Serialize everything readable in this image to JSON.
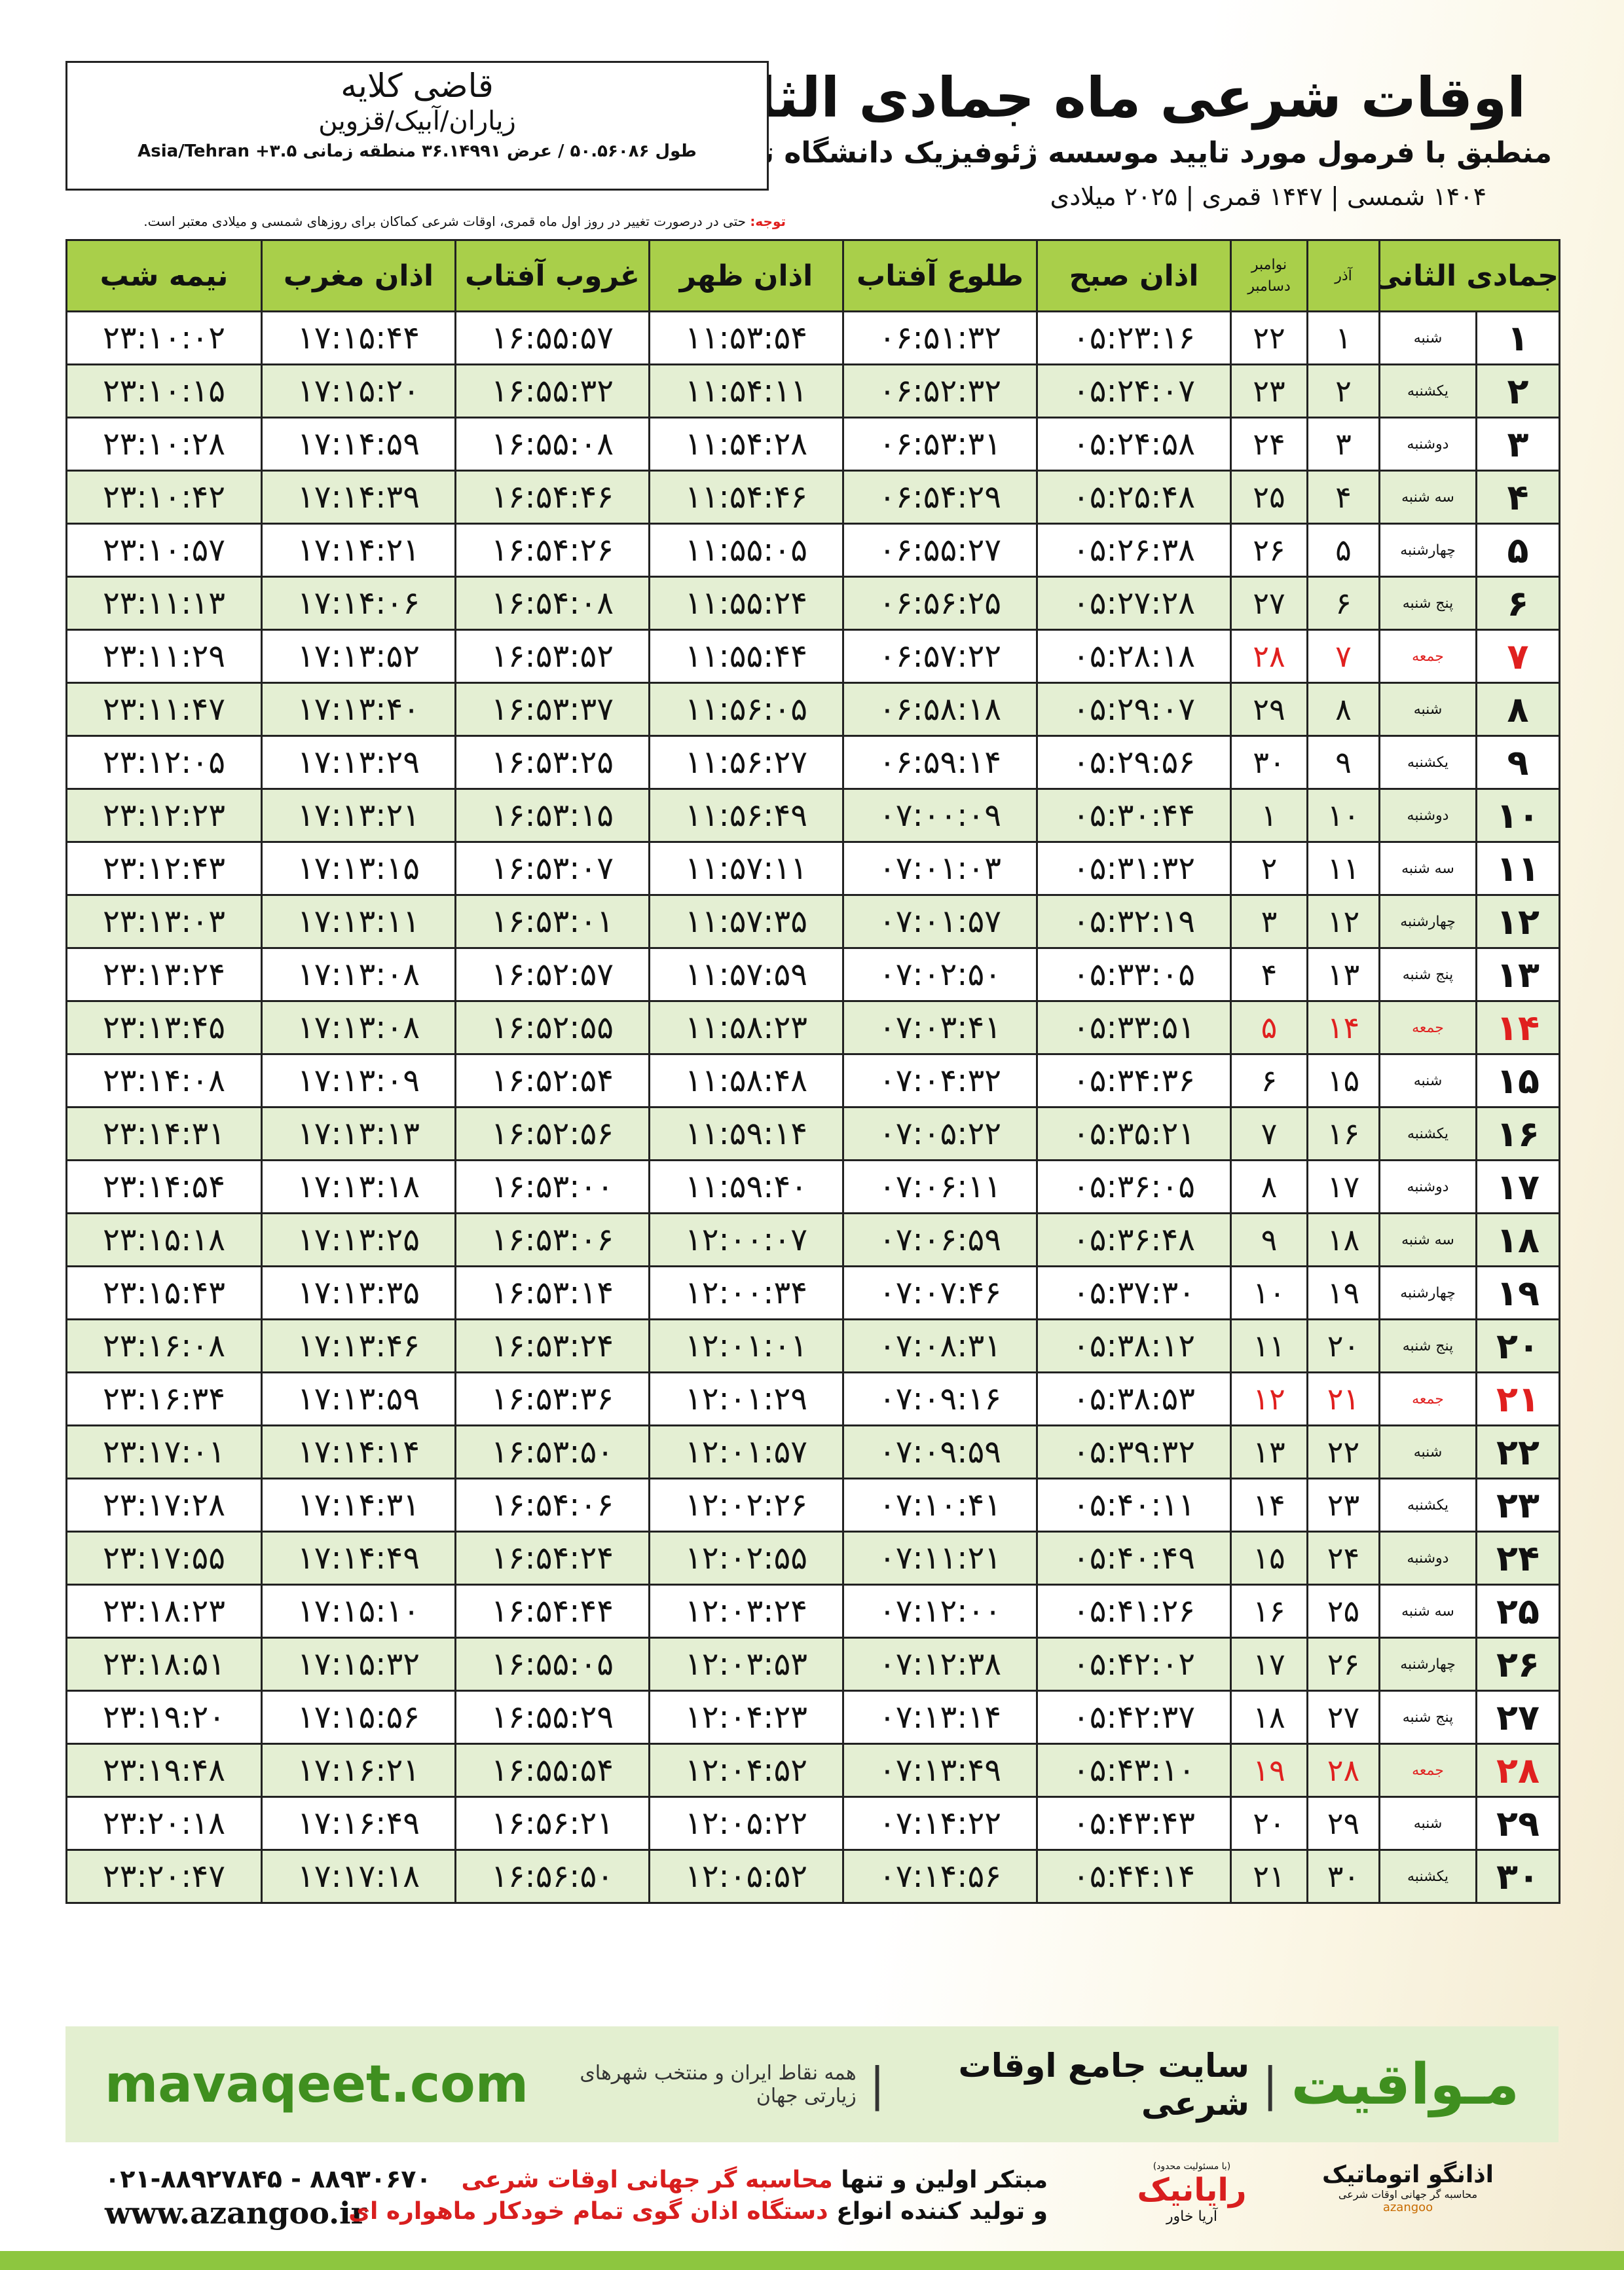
{
  "header": {
    "title": "اوقات شرعی ماه جمادی الثانی",
    "subtitle": "منطبق با فرمول مورد تایید موسسه ژئوفیزیک دانشگاه تهران",
    "dates": "۱۴۰۴ شمسی | ۱۴۴۷ قمری | ۲۰۲۵ میلادی"
  },
  "location": {
    "name": "قاضی کلایه",
    "region": "زیاران/آبیک/قزوین",
    "coords": "طول ۵۰.۵۶۰۸۶ / عرض ۳۶.۱۴۹۹۱ منطقه زمانی ۳.۵+ Asia/Tehran"
  },
  "note": {
    "label": "توجه:",
    "text": "حتی در درصورت تغییر در روز اول ماه قمری، اوقات شرعی کماکان برای روزهای شمسی و میلادی معتبر است."
  },
  "table": {
    "header_color": "#a9cf4a",
    "stripe_color": "#e4efd3",
    "columns": [
      "جمادی الثانی",
      "آذر",
      [
        "نوامبر",
        "دسامبر"
      ],
      "اذان صبح",
      "طلوع آفتاب",
      "اذان ظهر",
      "غروب آفتاب",
      "اذان مغرب",
      "نیمه شب"
    ],
    "rows": [
      {
        "cells": [
          "۱",
          "شنبه",
          "۱",
          "۲۲",
          "۰۵:۲۳:۱۶",
          "۰۶:۵۱:۳۲",
          "۱۱:۵۳:۵۴",
          "۱۶:۵۵:۵۷",
          "۱۷:۱۵:۴۴",
          "۲۳:۱۰:۰۲"
        ]
      },
      {
        "cells": [
          "۲",
          "یکشنبه",
          "۲",
          "۲۳",
          "۰۵:۲۴:۰۷",
          "۰۶:۵۲:۳۲",
          "۱۱:۵۴:۱۱",
          "۱۶:۵۵:۳۲",
          "۱۷:۱۵:۲۰",
          "۲۳:۱۰:۱۵"
        ]
      },
      {
        "cells": [
          "۳",
          "دوشنبه",
          "۳",
          "۲۴",
          "۰۵:۲۴:۵۸",
          "۰۶:۵۳:۳۱",
          "۱۱:۵۴:۲۸",
          "۱۶:۵۵:۰۸",
          "۱۷:۱۴:۵۹",
          "۲۳:۱۰:۲۸"
        ]
      },
      {
        "cells": [
          "۴",
          "سه شنبه",
          "۴",
          "۲۵",
          "۰۵:۲۵:۴۸",
          "۰۶:۵۴:۲۹",
          "۱۱:۵۴:۴۶",
          "۱۶:۵۴:۴۶",
          "۱۷:۱۴:۳۹",
          "۲۳:۱۰:۴۲"
        ]
      },
      {
        "cells": [
          "۵",
          "چهارشنبه",
          "۵",
          "۲۶",
          "۰۵:۲۶:۳۸",
          "۰۶:۵۵:۲۷",
          "۱۱:۵۵:۰۵",
          "۱۶:۵۴:۲۶",
          "۱۷:۱۴:۲۱",
          "۲۳:۱۰:۵۷"
        ]
      },
      {
        "cells": [
          "۶",
          "پنج شنبه",
          "۶",
          "۲۷",
          "۰۵:۲۷:۲۸",
          "۰۶:۵۶:۲۵",
          "۱۱:۵۵:۲۴",
          "۱۶:۵۴:۰۸",
          "۱۷:۱۴:۰۶",
          "۲۳:۱۱:۱۳"
        ]
      },
      {
        "cells": [
          "۷",
          "جمعه",
          "۷",
          "۲۸",
          "۰۵:۲۸:۱۸",
          "۰۶:۵۷:۲۲",
          "۱۱:۵۵:۴۴",
          "۱۶:۵۳:۵۲",
          "۱۷:۱۳:۵۲",
          "۲۳:۱۱:۲۹"
        ],
        "color": "#e0201f"
      },
      {
        "cells": [
          "۸",
          "شنبه",
          "۸",
          "۲۹",
          "۰۵:۲۹:۰۷",
          "۰۶:۵۸:۱۸",
          "۱۱:۵۶:۰۵",
          "۱۶:۵۳:۳۷",
          "۱۷:۱۳:۴۰",
          "۲۳:۱۱:۴۷"
        ]
      },
      {
        "cells": [
          "۹",
          "یکشنبه",
          "۹",
          "۳۰",
          "۰۵:۲۹:۵۶",
          "۰۶:۵۹:۱۴",
          "۱۱:۵۶:۲۷",
          "۱۶:۵۳:۲۵",
          "۱۷:۱۳:۲۹",
          "۲۳:۱۲:۰۵"
        ]
      },
      {
        "cells": [
          "۱۰",
          "دوشنبه",
          "۱۰",
          "۱",
          "۰۵:۳۰:۴۴",
          "۰۷:۰۰:۰۹",
          "۱۱:۵۶:۴۹",
          "۱۶:۵۳:۱۵",
          "۱۷:۱۳:۲۱",
          "۲۳:۱۲:۲۳"
        ]
      },
      {
        "cells": [
          "۱۱",
          "سه شنبه",
          "۱۱",
          "۲",
          "۰۵:۳۱:۳۲",
          "۰۷:۰۱:۰۳",
          "۱۱:۵۷:۱۱",
          "۱۶:۵۳:۰۷",
          "۱۷:۱۳:۱۵",
          "۲۳:۱۲:۴۳"
        ]
      },
      {
        "cells": [
          "۱۲",
          "چهارشنبه",
          "۱۲",
          "۳",
          "۰۵:۳۲:۱۹",
          "۰۷:۰۱:۵۷",
          "۱۱:۵۷:۳۵",
          "۱۶:۵۳:۰۱",
          "۱۷:۱۳:۱۱",
          "۲۳:۱۳:۰۳"
        ]
      },
      {
        "cells": [
          "۱۳",
          "پنج شنبه",
          "۱۳",
          "۴",
          "۰۵:۳۳:۰۵",
          "۰۷:۰۲:۵۰",
          "۱۱:۵۷:۵۹",
          "۱۶:۵۲:۵۷",
          "۱۷:۱۳:۰۸",
          "۲۳:۱۳:۲۴"
        ]
      },
      {
        "cells": [
          "۱۴",
          "جمعه",
          "۱۴",
          "۵",
          "۰۵:۳۳:۵۱",
          "۰۷:۰۳:۴۱",
          "۱۱:۵۸:۲۳",
          "۱۶:۵۲:۵۵",
          "۱۷:۱۳:۰۸",
          "۲۳:۱۳:۴۵"
        ],
        "color": "#e0201f"
      },
      {
        "cells": [
          "۱۵",
          "شنبه",
          "۱۵",
          "۶",
          "۰۵:۳۴:۳۶",
          "۰۷:۰۴:۳۲",
          "۱۱:۵۸:۴۸",
          "۱۶:۵۲:۵۴",
          "۱۷:۱۳:۰۹",
          "۲۳:۱۴:۰۸"
        ]
      },
      {
        "cells": [
          "۱۶",
          "یکشنبه",
          "۱۶",
          "۷",
          "۰۵:۳۵:۲۱",
          "۰۷:۰۵:۲۲",
          "۱۱:۵۹:۱۴",
          "۱۶:۵۲:۵۶",
          "۱۷:۱۳:۱۳",
          "۲۳:۱۴:۳۱"
        ]
      },
      {
        "cells": [
          "۱۷",
          "دوشنبه",
          "۱۷",
          "۸",
          "۰۵:۳۶:۰۵",
          "۰۷:۰۶:۱۱",
          "۱۱:۵۹:۴۰",
          "۱۶:۵۳:۰۰",
          "۱۷:۱۳:۱۸",
          "۲۳:۱۴:۵۴"
        ]
      },
      {
        "cells": [
          "۱۸",
          "سه شنبه",
          "۱۸",
          "۹",
          "۰۵:۳۶:۴۸",
          "۰۷:۰۶:۵۹",
          "۱۲:۰۰:۰۷",
          "۱۶:۵۳:۰۶",
          "۱۷:۱۳:۲۵",
          "۲۳:۱۵:۱۸"
        ]
      },
      {
        "cells": [
          "۱۹",
          "چهارشنبه",
          "۱۹",
          "۱۰",
          "۰۵:۳۷:۳۰",
          "۰۷:۰۷:۴۶",
          "۱۲:۰۰:۳۴",
          "۱۶:۵۳:۱۴",
          "۱۷:۱۳:۳۵",
          "۲۳:۱۵:۴۳"
        ]
      },
      {
        "cells": [
          "۲۰",
          "پنج شنبه",
          "۲۰",
          "۱۱",
          "۰۵:۳۸:۱۲",
          "۰۷:۰۸:۳۱",
          "۱۲:۰۱:۰۱",
          "۱۶:۵۳:۲۴",
          "۱۷:۱۳:۴۶",
          "۲۳:۱۶:۰۸"
        ]
      },
      {
        "cells": [
          "۲۱",
          "جمعه",
          "۲۱",
          "۱۲",
          "۰۵:۳۸:۵۳",
          "۰۷:۰۹:۱۶",
          "۱۲:۰۱:۲۹",
          "۱۶:۵۳:۳۶",
          "۱۷:۱۳:۵۹",
          "۲۳:۱۶:۳۴"
        ],
        "color": "#e0201f"
      },
      {
        "cells": [
          "۲۲",
          "شنبه",
          "۲۲",
          "۱۳",
          "۰۵:۳۹:۳۲",
          "۰۷:۰۹:۵۹",
          "۱۲:۰۱:۵۷",
          "۱۶:۵۳:۵۰",
          "۱۷:۱۴:۱۴",
          "۲۳:۱۷:۰۱"
        ]
      },
      {
        "cells": [
          "۲۳",
          "یکشنبه",
          "۲۳",
          "۱۴",
          "۰۵:۴۰:۱۱",
          "۰۷:۱۰:۴۱",
          "۱۲:۰۲:۲۶",
          "۱۶:۵۴:۰۶",
          "۱۷:۱۴:۳۱",
          "۲۳:۱۷:۲۸"
        ]
      },
      {
        "cells": [
          "۲۴",
          "دوشنبه",
          "۲۴",
          "۱۵",
          "۰۵:۴۰:۴۹",
          "۰۷:۱۱:۲۱",
          "۱۲:۰۲:۵۵",
          "۱۶:۵۴:۲۴",
          "۱۷:۱۴:۴۹",
          "۲۳:۱۷:۵۵"
        ]
      },
      {
        "cells": [
          "۲۵",
          "سه شنبه",
          "۲۵",
          "۱۶",
          "۰۵:۴۱:۲۶",
          "۰۷:۱۲:۰۰",
          "۱۲:۰۳:۲۴",
          "۱۶:۵۴:۴۴",
          "۱۷:۱۵:۱۰",
          "۲۳:۱۸:۲۳"
        ]
      },
      {
        "cells": [
          "۲۶",
          "چهارشنبه",
          "۲۶",
          "۱۷",
          "۰۵:۴۲:۰۲",
          "۰۷:۱۲:۳۸",
          "۱۲:۰۳:۵۳",
          "۱۶:۵۵:۰۵",
          "۱۷:۱۵:۳۲",
          "۲۳:۱۸:۵۱"
        ]
      },
      {
        "cells": [
          "۲۷",
          "پنج شنبه",
          "۲۷",
          "۱۸",
          "۰۵:۴۲:۳۷",
          "۰۷:۱۳:۱۴",
          "۱۲:۰۴:۲۳",
          "۱۶:۵۵:۲۹",
          "۱۷:۱۵:۵۶",
          "۲۳:۱۹:۲۰"
        ]
      },
      {
        "cells": [
          "۲۸",
          "جمعه",
          "۲۸",
          "۱۹",
          "۰۵:۴۳:۱۰",
          "۰۷:۱۳:۴۹",
          "۱۲:۰۴:۵۲",
          "۱۶:۵۵:۵۴",
          "۱۷:۱۶:۲۱",
          "۲۳:۱۹:۴۸"
        ],
        "color": "#e0201f"
      },
      {
        "cells": [
          "۲۹",
          "شنبه",
          "۲۹",
          "۲۰",
          "۰۵:۴۳:۴۳",
          "۰۷:۱۴:۲۲",
          "۱۲:۰۵:۲۲",
          "۱۶:۵۶:۲۱",
          "۱۷:۱۶:۴۹",
          "۲۳:۲۰:۱۸"
        ]
      },
      {
        "cells": [
          "۳۰",
          "یکشنبه",
          "۳۰",
          "۲۱",
          "۰۵:۴۴:۱۴",
          "۰۷:۱۴:۵۶",
          "۱۲:۰۵:۵۲",
          "۱۶:۵۶:۵۰",
          "۱۷:۱۷:۱۸",
          "۲۳:۲۰:۴۷"
        ]
      }
    ]
  },
  "banner": {
    "brand": "مـواقیت",
    "tagline": "سایت جامع اوقات شرعی",
    "scope": "همه نقاط ایران و منتخب شهرهای زیارتی جهان",
    "url": "mavaqeet.com"
  },
  "footer": {
    "phones": "۰۲۱-۸۸۹۲۷۸۴۵ - ۸۸۹۳۰۶۷۰",
    "website": "www.azangoo.ir",
    "line1": {
      "plain": "مبتکر اولین و تنها",
      "highlight": "محاسبه گر جهانی اوقات شرعی"
    },
    "line2": {
      "plain": "و تولید کننده انواع",
      "highlight": "دستگاه اذان گوی تمام خودکار ماهواره ای"
    },
    "logo1": {
      "name": "رایانیک",
      "sub": "آریا خاور",
      "note": "(با مسئولیت محدود)"
    },
    "logo2": {
      "name": "اذانگو اتوماتیک",
      "sub": "محاسبه گر جهانی اوقات شرعی",
      "latin": "azangoo"
    }
  }
}
